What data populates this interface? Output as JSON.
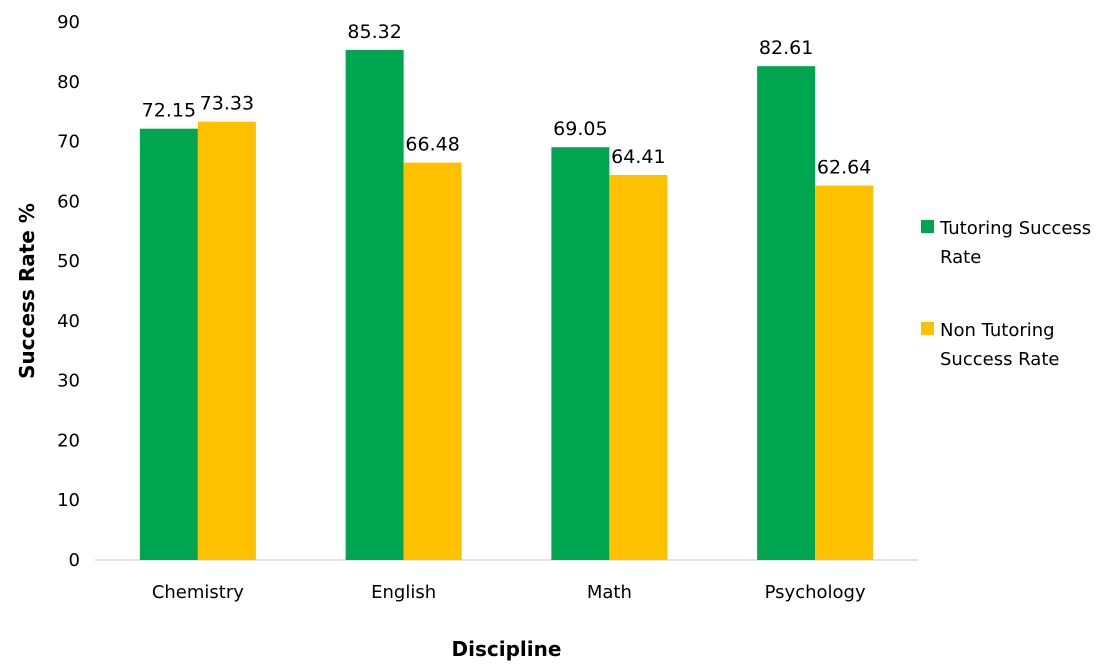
{
  "chart_data": {
    "type": "bar",
    "title": "",
    "xlabel": "Discipline",
    "ylabel": "Success Rate %",
    "ylim": [
      0,
      90
    ],
    "yticks": [
      0,
      10,
      20,
      30,
      40,
      50,
      60,
      70,
      80,
      90
    ],
    "categories": [
      "Chemistry",
      "English",
      "Math",
      "Psychology"
    ],
    "series": [
      {
        "name": "Tutoring Success Rate",
        "legend_lines": [
          "Tutoring Success",
          "Rate"
        ],
        "color": "#00A550",
        "values": [
          72.15,
          85.32,
          69.05,
          82.61
        ]
      },
      {
        "name": "Non Tutoring Success Rate",
        "legend_lines": [
          "Non Tutoring",
          "Success Rate"
        ],
        "color": "#FFC000",
        "values": [
          73.33,
          66.48,
          64.41,
          62.64
        ]
      }
    ],
    "grid": false,
    "legend_position": "right",
    "data_labels": true
  }
}
